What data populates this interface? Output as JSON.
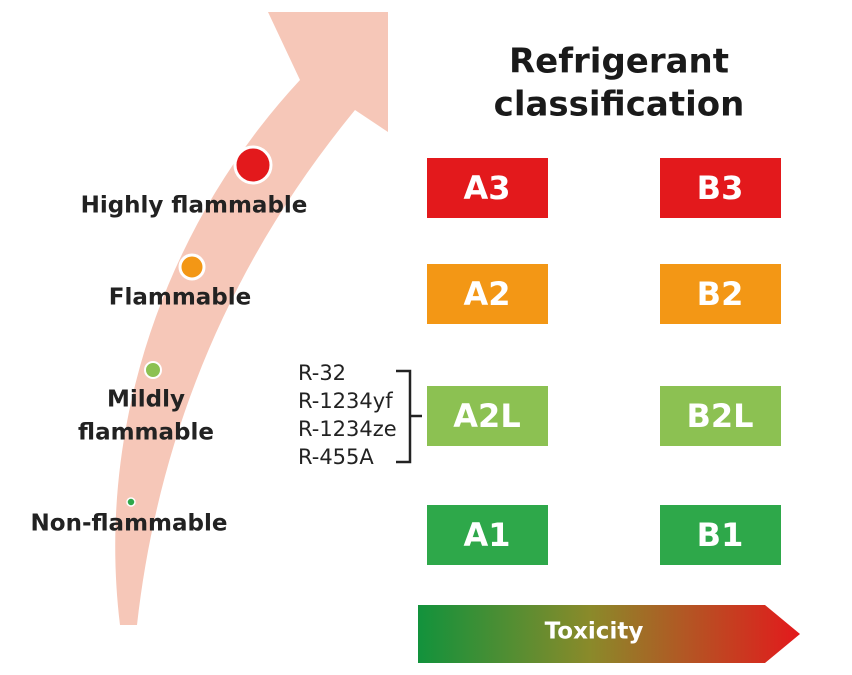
{
  "title": [
    "Refrigerant",
    "classification"
  ],
  "flammability": [
    {
      "lines": [
        "Highly flammable"
      ]
    },
    {
      "lines": [
        "Flammable"
      ]
    },
    {
      "lines": [
        "Mildly",
        "flammable"
      ]
    },
    {
      "lines": [
        "Non-flammable"
      ]
    }
  ],
  "classes": [
    [
      "A3",
      "B3"
    ],
    [
      "A2",
      "B2"
    ],
    [
      "A2L",
      "B2L"
    ],
    [
      "A1",
      "B1"
    ]
  ],
  "refrigerants": [
    "R-32",
    "R-1234yf",
    "R-1234ze",
    "R-455A"
  ],
  "axis_label": "Toxicity"
}
